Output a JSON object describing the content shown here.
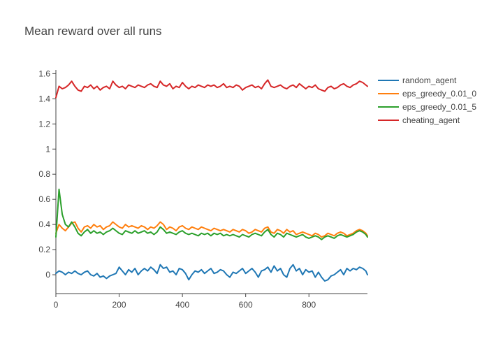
{
  "chart_data": {
    "type": "line",
    "title": "Mean reward over all runs",
    "xlabel": "",
    "ylabel": "",
    "xlim": [
      0,
      985
    ],
    "ylim": [
      -0.15,
      1.63
    ],
    "xticks": [
      0,
      200,
      400,
      600,
      800
    ],
    "yticks": [
      0,
      0.2,
      0.4,
      0.6,
      0.8,
      1,
      1.2,
      1.4,
      1.6
    ],
    "grid": false,
    "legend_position": "top-right",
    "series": [
      {
        "name": "random_agent",
        "color": "#1f77b4",
        "x": [
          0,
          10,
          20,
          30,
          40,
          50,
          60,
          70,
          80,
          90,
          100,
          110,
          120,
          130,
          140,
          150,
          160,
          170,
          180,
          190,
          200,
          210,
          220,
          230,
          240,
          250,
          260,
          270,
          280,
          290,
          300,
          310,
          320,
          330,
          340,
          350,
          360,
          370,
          380,
          390,
          400,
          410,
          420,
          430,
          440,
          450,
          460,
          470,
          480,
          490,
          500,
          510,
          520,
          530,
          540,
          550,
          560,
          570,
          580,
          590,
          600,
          610,
          620,
          630,
          640,
          650,
          660,
          670,
          680,
          690,
          700,
          710,
          720,
          730,
          740,
          750,
          760,
          770,
          780,
          790,
          800,
          810,
          820,
          830,
          840,
          850,
          860,
          870,
          880,
          890,
          900,
          910,
          920,
          930,
          940,
          950,
          960,
          970,
          980,
          985
        ],
        "values": [
          0.01,
          0.03,
          0.02,
          0.0,
          0.02,
          0.01,
          0.03,
          0.01,
          0.0,
          0.02,
          0.03,
          0.0,
          -0.01,
          0.01,
          -0.02,
          -0.01,
          -0.03,
          -0.01,
          0.0,
          0.01,
          0.06,
          0.03,
          0.0,
          0.04,
          0.02,
          0.05,
          0.0,
          0.03,
          0.05,
          0.03,
          0.06,
          0.04,
          0.01,
          0.08,
          0.05,
          0.06,
          0.02,
          0.03,
          0.0,
          0.05,
          0.04,
          0.01,
          -0.04,
          0.0,
          0.03,
          0.02,
          0.04,
          0.01,
          0.03,
          0.05,
          0.01,
          0.02,
          0.04,
          0.03,
          0.0,
          -0.02,
          0.02,
          0.01,
          0.03,
          0.05,
          0.01,
          0.03,
          0.05,
          0.02,
          -0.02,
          0.03,
          0.04,
          0.06,
          0.02,
          0.07,
          0.03,
          0.05,
          0.0,
          -0.02,
          0.05,
          0.08,
          0.03,
          0.05,
          0.0,
          0.04,
          0.02,
          0.03,
          -0.02,
          0.02,
          -0.02,
          -0.05,
          -0.04,
          -0.01,
          0.0,
          0.02,
          0.04,
          0.0,
          0.05,
          0.03,
          0.05,
          0.04,
          0.06,
          0.05,
          0.03,
          0.0
        ]
      },
      {
        "name": "eps_greedy_0.01_0",
        "color": "#ff7f0e",
        "x": [
          0,
          10,
          20,
          30,
          40,
          50,
          60,
          70,
          80,
          90,
          100,
          110,
          120,
          130,
          140,
          150,
          160,
          170,
          180,
          190,
          200,
          210,
          220,
          230,
          240,
          250,
          260,
          270,
          280,
          290,
          300,
          310,
          320,
          330,
          340,
          350,
          360,
          370,
          380,
          390,
          400,
          410,
          420,
          430,
          440,
          450,
          460,
          470,
          480,
          490,
          500,
          510,
          520,
          530,
          540,
          550,
          560,
          570,
          580,
          590,
          600,
          610,
          620,
          630,
          640,
          650,
          660,
          670,
          680,
          690,
          700,
          710,
          720,
          730,
          740,
          750,
          760,
          770,
          780,
          790,
          800,
          810,
          820,
          830,
          840,
          850,
          860,
          870,
          880,
          890,
          900,
          910,
          920,
          930,
          940,
          950,
          960,
          970,
          980,
          985
        ],
        "values": [
          0.33,
          0.4,
          0.37,
          0.35,
          0.38,
          0.41,
          0.42,
          0.37,
          0.34,
          0.38,
          0.39,
          0.37,
          0.4,
          0.38,
          0.39,
          0.36,
          0.38,
          0.39,
          0.42,
          0.4,
          0.38,
          0.37,
          0.4,
          0.38,
          0.39,
          0.38,
          0.37,
          0.39,
          0.38,
          0.36,
          0.38,
          0.37,
          0.39,
          0.42,
          0.4,
          0.36,
          0.38,
          0.37,
          0.35,
          0.38,
          0.39,
          0.37,
          0.36,
          0.38,
          0.37,
          0.36,
          0.38,
          0.37,
          0.36,
          0.35,
          0.37,
          0.36,
          0.35,
          0.36,
          0.35,
          0.34,
          0.36,
          0.35,
          0.34,
          0.36,
          0.35,
          0.33,
          0.34,
          0.36,
          0.35,
          0.34,
          0.37,
          0.38,
          0.34,
          0.33,
          0.36,
          0.35,
          0.33,
          0.36,
          0.34,
          0.35,
          0.32,
          0.33,
          0.34,
          0.33,
          0.32,
          0.31,
          0.33,
          0.32,
          0.3,
          0.31,
          0.33,
          0.32,
          0.31,
          0.33,
          0.34,
          0.33,
          0.31,
          0.32,
          0.33,
          0.35,
          0.36,
          0.35,
          0.33,
          0.31
        ]
      },
      {
        "name": "eps_greedy_0.01_5",
        "color": "#2ca02c",
        "x": [
          0,
          10,
          20,
          30,
          40,
          50,
          60,
          70,
          80,
          90,
          100,
          110,
          120,
          130,
          140,
          150,
          160,
          170,
          180,
          190,
          200,
          210,
          220,
          230,
          240,
          250,
          260,
          270,
          280,
          290,
          300,
          310,
          320,
          330,
          340,
          350,
          360,
          370,
          380,
          390,
          400,
          410,
          420,
          430,
          440,
          450,
          460,
          470,
          480,
          490,
          500,
          510,
          520,
          530,
          540,
          550,
          560,
          570,
          580,
          590,
          600,
          610,
          620,
          630,
          640,
          650,
          660,
          670,
          680,
          690,
          700,
          710,
          720,
          730,
          740,
          750,
          760,
          770,
          780,
          790,
          800,
          810,
          820,
          830,
          840,
          850,
          860,
          870,
          880,
          890,
          900,
          910,
          920,
          930,
          940,
          950,
          960,
          970,
          980,
          985
        ],
        "values": [
          0.3,
          0.68,
          0.48,
          0.4,
          0.38,
          0.42,
          0.38,
          0.33,
          0.31,
          0.34,
          0.36,
          0.33,
          0.35,
          0.33,
          0.34,
          0.32,
          0.34,
          0.35,
          0.37,
          0.35,
          0.33,
          0.32,
          0.35,
          0.34,
          0.33,
          0.35,
          0.33,
          0.34,
          0.35,
          0.33,
          0.34,
          0.32,
          0.34,
          0.38,
          0.36,
          0.33,
          0.34,
          0.33,
          0.32,
          0.34,
          0.35,
          0.33,
          0.32,
          0.33,
          0.32,
          0.31,
          0.33,
          0.32,
          0.33,
          0.31,
          0.33,
          0.32,
          0.33,
          0.31,
          0.32,
          0.31,
          0.32,
          0.31,
          0.3,
          0.32,
          0.31,
          0.3,
          0.32,
          0.33,
          0.32,
          0.31,
          0.34,
          0.36,
          0.32,
          0.3,
          0.33,
          0.32,
          0.3,
          0.33,
          0.32,
          0.31,
          0.3,
          0.31,
          0.32,
          0.3,
          0.29,
          0.3,
          0.31,
          0.3,
          0.28,
          0.3,
          0.31,
          0.3,
          0.29,
          0.31,
          0.32,
          0.31,
          0.3,
          0.31,
          0.32,
          0.34,
          0.35,
          0.34,
          0.32,
          0.3
        ]
      },
      {
        "name": "cheating_agent",
        "color": "#d62728",
        "x": [
          0,
          10,
          20,
          30,
          40,
          50,
          60,
          70,
          80,
          90,
          100,
          110,
          120,
          130,
          140,
          150,
          160,
          170,
          180,
          190,
          200,
          210,
          220,
          230,
          240,
          250,
          260,
          270,
          280,
          290,
          300,
          310,
          320,
          330,
          340,
          350,
          360,
          370,
          380,
          390,
          400,
          410,
          420,
          430,
          440,
          450,
          460,
          470,
          480,
          490,
          500,
          510,
          520,
          530,
          540,
          550,
          560,
          570,
          580,
          590,
          600,
          610,
          620,
          630,
          640,
          650,
          660,
          670,
          680,
          690,
          700,
          710,
          720,
          730,
          740,
          750,
          760,
          770,
          780,
          790,
          800,
          810,
          820,
          830,
          840,
          850,
          860,
          870,
          880,
          890,
          900,
          910,
          920,
          930,
          940,
          950,
          960,
          970,
          980,
          985
        ],
        "values": [
          1.41,
          1.5,
          1.48,
          1.49,
          1.51,
          1.54,
          1.5,
          1.47,
          1.46,
          1.5,
          1.49,
          1.51,
          1.48,
          1.5,
          1.47,
          1.49,
          1.5,
          1.48,
          1.54,
          1.51,
          1.49,
          1.5,
          1.48,
          1.51,
          1.5,
          1.49,
          1.51,
          1.5,
          1.49,
          1.51,
          1.52,
          1.5,
          1.49,
          1.54,
          1.51,
          1.5,
          1.52,
          1.48,
          1.5,
          1.49,
          1.53,
          1.5,
          1.48,
          1.5,
          1.49,
          1.51,
          1.5,
          1.49,
          1.51,
          1.5,
          1.51,
          1.49,
          1.5,
          1.52,
          1.49,
          1.5,
          1.49,
          1.51,
          1.5,
          1.47,
          1.49,
          1.5,
          1.51,
          1.49,
          1.5,
          1.48,
          1.52,
          1.55,
          1.5,
          1.49,
          1.5,
          1.51,
          1.49,
          1.48,
          1.5,
          1.51,
          1.49,
          1.52,
          1.5,
          1.48,
          1.5,
          1.49,
          1.51,
          1.48,
          1.47,
          1.46,
          1.49,
          1.5,
          1.48,
          1.49,
          1.51,
          1.52,
          1.5,
          1.49,
          1.51,
          1.52,
          1.54,
          1.53,
          1.51,
          1.5
        ]
      }
    ]
  }
}
